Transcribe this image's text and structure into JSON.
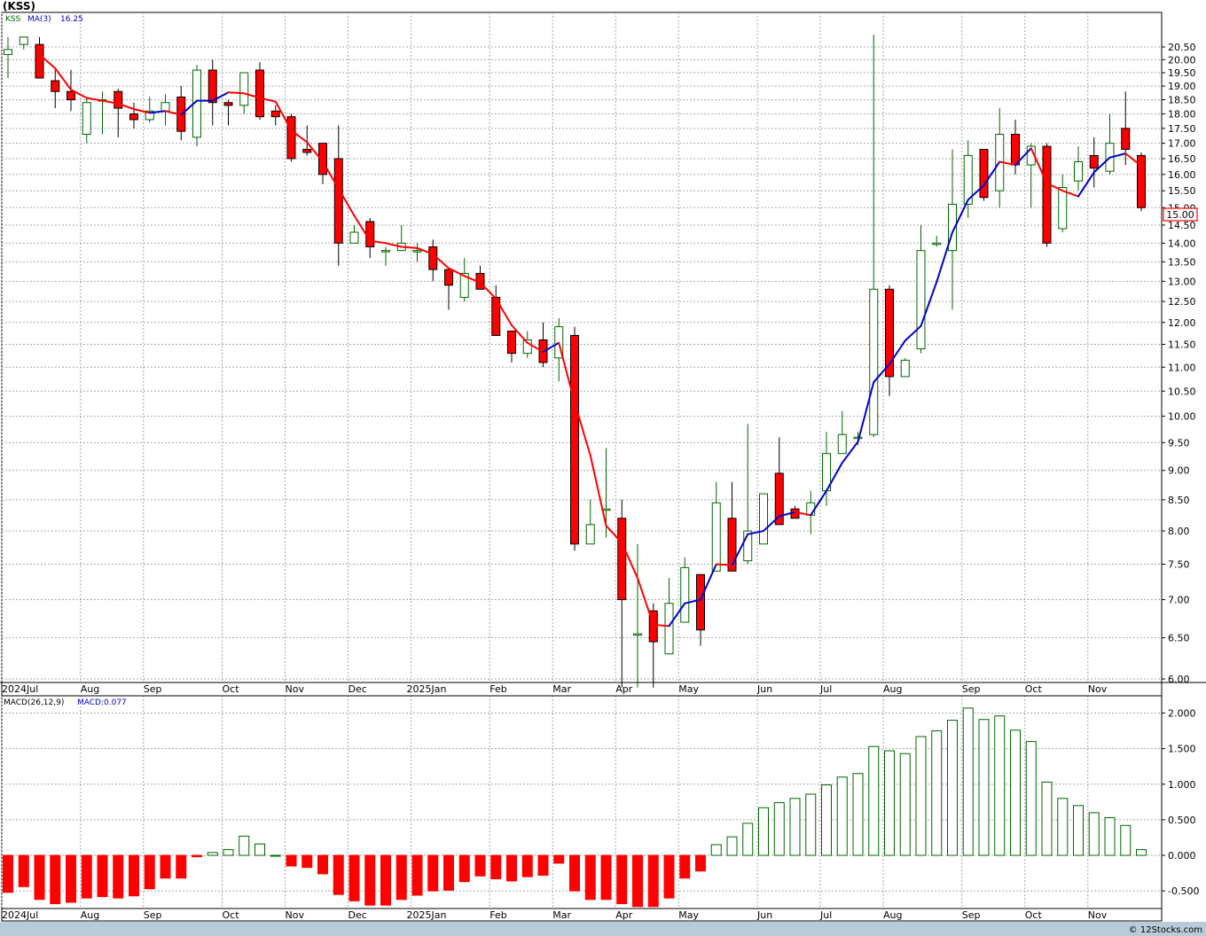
{
  "title": "(KSS)",
  "legend": {
    "symbol": "KSS",
    "ma_label": "MA(3)",
    "ma_value": "16.25",
    "macd_params": "MACD(26,12,9)",
    "macd_label": "MACD:0.077"
  },
  "last_price_label": "15.00",
  "watermark": "© 12Stocks.com",
  "colors": {
    "up": "#006600",
    "down": "#ff0000",
    "ma_up": "#0000cc",
    "ma_down": "#ff0000",
    "frame": "#000000",
    "grid": "#a8a8a8",
    "bottom_bar": "#b8ccd8",
    "price_box": "#ff0000"
  },
  "chart_data": [
    {
      "type": "candlestick",
      "name": "KSS weekly price",
      "scale": "log",
      "ylim": [
        5.9,
        21.3
      ],
      "yticks": [
        6.0,
        6.5,
        7.0,
        7.5,
        8.0,
        8.5,
        9.0,
        9.5,
        10.0,
        10.5,
        11.0,
        11.5,
        12.0,
        12.5,
        13.0,
        13.5,
        14.0,
        14.5,
        15.0,
        15.5,
        16.0,
        16.5,
        17.0,
        17.5,
        18.0,
        18.5,
        19.0,
        19.5,
        20.0,
        20.5
      ],
      "ytick_labels": [
        "6.00",
        "6.50",
        "7.00",
        "7.50",
        "8.00",
        "8.50",
        "9.00",
        "9.50",
        "10.00",
        "10.50",
        "11.00",
        "11.50",
        "12.00",
        "12.50",
        "13.00",
        "13.50",
        "14.00",
        "14.50",
        "15.00",
        "15.50",
        "16.00",
        "16.50",
        "17.00",
        "17.50",
        "18.00",
        "18.50",
        "19.00",
        "19.50",
        "20.00",
        "20.50"
      ],
      "x_labels": [
        {
          "label": "2024Jul",
          "index": 0
        },
        {
          "label": "Aug",
          "index": 5
        },
        {
          "label": "Sep",
          "index": 9
        },
        {
          "label": "Oct",
          "index": 14
        },
        {
          "label": "Nov",
          "index": 18
        },
        {
          "label": "Dec",
          "index": 22
        },
        {
          "label": "2025Jan",
          "index": 26
        },
        {
          "label": "Feb",
          "index": 31
        },
        {
          "label": "Mar",
          "index": 35
        },
        {
          "label": "Apr",
          "index": 39
        },
        {
          "label": "May",
          "index": 43
        },
        {
          "label": "Jun",
          "index": 48
        },
        {
          "label": "Jul",
          "index": 52
        },
        {
          "label": "Aug",
          "index": 56
        },
        {
          "label": "Sep",
          "index": 61
        },
        {
          "label": "Oct",
          "index": 65
        },
        {
          "label": "Nov",
          "index": 69
        }
      ],
      "candles": [
        [
          20.2,
          20.4,
          19.3,
          20.9
        ],
        [
          20.6,
          20.9,
          20.4,
          20.9
        ],
        [
          20.6,
          19.3,
          19.3,
          20.9
        ],
        [
          19.2,
          18.8,
          18.2,
          19.6
        ],
        [
          18.8,
          18.5,
          18.1,
          19.6
        ],
        [
          17.3,
          18.4,
          17.0,
          18.6
        ],
        [
          18.5,
          18.5,
          17.3,
          18.8
        ],
        [
          18.8,
          18.2,
          17.2,
          18.9
        ],
        [
          18.0,
          17.8,
          17.5,
          18.4
        ],
        [
          17.8,
          18.1,
          17.7,
          18.6
        ],
        [
          18.1,
          18.4,
          17.6,
          18.7
        ],
        [
          18.6,
          17.4,
          17.1,
          19.0
        ],
        [
          17.2,
          19.6,
          16.9,
          19.8
        ],
        [
          19.6,
          18.4,
          17.6,
          20.0
        ],
        [
          18.4,
          18.3,
          17.6,
          18.5
        ],
        [
          18.3,
          19.5,
          18.0,
          19.5
        ],
        [
          19.6,
          17.9,
          17.8,
          19.9
        ],
        [
          18.1,
          17.9,
          17.6,
          18.3
        ],
        [
          17.9,
          16.5,
          16.4,
          18.0
        ],
        [
          16.8,
          16.7,
          16.6,
          17.6
        ],
        [
          17.0,
          16.0,
          15.7,
          17.0
        ],
        [
          16.5,
          14.0,
          13.4,
          17.6
        ],
        [
          14.0,
          14.3,
          14.1,
          14.5
        ],
        [
          14.6,
          13.9,
          13.6,
          14.7
        ],
        [
          13.8,
          13.8,
          13.4,
          13.9
        ],
        [
          13.8,
          14.0,
          13.8,
          14.5
        ],
        [
          13.8,
          13.8,
          13.5,
          14.0
        ],
        [
          13.9,
          13.3,
          13.0,
          14.1
        ],
        [
          13.3,
          12.9,
          12.3,
          13.3
        ],
        [
          12.6,
          13.2,
          12.5,
          13.6
        ],
        [
          13.2,
          12.8,
          12.8,
          13.4
        ],
        [
          12.6,
          11.7,
          11.7,
          12.9
        ],
        [
          11.8,
          11.3,
          11.1,
          11.8
        ],
        [
          11.3,
          11.6,
          11.2,
          11.8
        ],
        [
          11.6,
          11.1,
          11.0,
          12.0
        ],
        [
          11.2,
          11.9,
          10.7,
          12.1
        ],
        [
          11.7,
          7.8,
          7.7,
          11.9
        ],
        [
          7.8,
          8.1,
          7.8,
          8.5
        ],
        [
          8.35,
          8.35,
          7.9,
          9.4
        ],
        [
          8.2,
          7.0,
          5.9,
          8.5
        ],
        [
          6.55,
          6.55,
          5.9,
          7.8
        ],
        [
          6.85,
          6.45,
          5.9,
          6.95
        ],
        [
          6.3,
          6.95,
          6.3,
          7.3
        ],
        [
          6.7,
          7.45,
          6.7,
          7.6
        ],
        [
          7.35,
          6.6,
          6.4,
          7.35
        ],
        [
          7.4,
          8.45,
          7.4,
          8.8
        ],
        [
          8.2,
          7.4,
          7.4,
          8.8
        ],
        [
          7.55,
          8.0,
          7.5,
          9.85
        ],
        [
          7.8,
          8.6,
          7.8,
          8.6
        ],
        [
          8.95,
          8.1,
          8.1,
          9.6
        ],
        [
          8.35,
          8.2,
          8.2,
          8.4
        ],
        [
          8.25,
          8.45,
          7.95,
          8.65
        ],
        [
          8.65,
          9.3,
          8.4,
          9.7
        ],
        [
          9.3,
          9.65,
          9.3,
          10.1
        ],
        [
          9.6,
          9.6,
          9.45,
          9.7
        ],
        [
          9.65,
          12.8,
          9.6,
          21.0
        ],
        [
          12.8,
          10.8,
          10.4,
          12.9
        ],
        [
          10.8,
          11.15,
          10.8,
          11.2
        ],
        [
          11.4,
          13.8,
          11.3,
          14.5
        ],
        [
          14.0,
          14.0,
          13.9,
          14.2
        ],
        [
          13.8,
          15.1,
          12.3,
          16.8
        ],
        [
          15.1,
          16.6,
          14.7,
          17.1
        ],
        [
          16.8,
          15.3,
          15.2,
          16.8
        ],
        [
          15.5,
          17.3,
          15.0,
          18.2
        ],
        [
          17.3,
          16.3,
          16.0,
          17.8
        ],
        [
          16.3,
          16.9,
          15.0,
          17.0
        ],
        [
          16.9,
          14.0,
          13.9,
          17.0
        ],
        [
          14.4,
          15.6,
          14.3,
          16.0
        ],
        [
          15.8,
          16.4,
          15.5,
          16.9
        ],
        [
          16.6,
          16.2,
          15.6,
          17.2
        ],
        [
          16.1,
          17.0,
          16.0,
          18.0
        ],
        [
          17.5,
          16.8,
          16.3,
          18.8
        ],
        [
          16.6,
          15.0,
          14.9,
          16.7
        ]
      ]
    },
    {
      "type": "bar",
      "name": "MACD",
      "ylim": [
        -0.75,
        2.2
      ],
      "yticks": [
        -0.5,
        0.0,
        0.5,
        1.0,
        1.5,
        2.0
      ],
      "ytick_labels": [
        "-0.500",
        "0.000",
        "0.500",
        "1.000",
        "1.500",
        "2.000"
      ],
      "values": [
        -0.52,
        -0.44,
        -0.62,
        -0.68,
        -0.66,
        -0.6,
        -0.58,
        -0.6,
        -0.57,
        -0.47,
        -0.32,
        -0.32,
        -0.02,
        0.04,
        0.08,
        0.27,
        0.16,
        0.0,
        -0.15,
        -0.17,
        -0.26,
        -0.55,
        -0.64,
        -0.7,
        -0.7,
        -0.62,
        -0.56,
        -0.5,
        -0.49,
        -0.37,
        -0.29,
        -0.33,
        -0.36,
        -0.3,
        -0.28,
        -0.11,
        -0.5,
        -0.62,
        -0.62,
        -0.68,
        -0.72,
        -0.72,
        -0.6,
        -0.32,
        -0.22,
        0.15,
        0.26,
        0.45,
        0.67,
        0.74,
        0.8,
        0.86,
        0.99,
        1.1,
        1.15,
        1.53,
        1.47,
        1.43,
        1.67,
        1.75,
        1.9,
        2.07,
        1.91,
        1.96,
        1.76,
        1.6,
        1.03,
        0.8,
        0.7,
        0.6,
        0.53,
        0.42,
        0.08
      ]
    }
  ]
}
